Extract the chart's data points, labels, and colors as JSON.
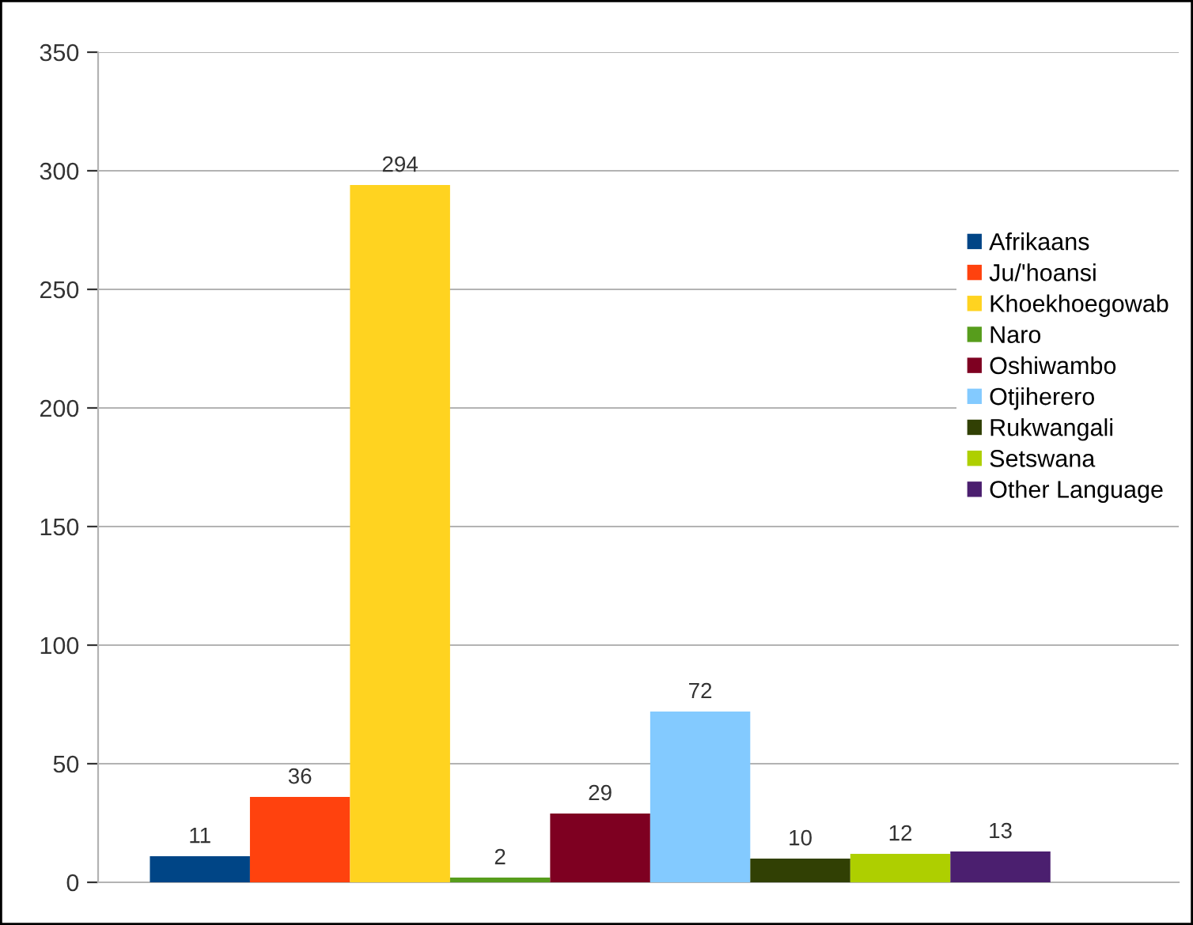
{
  "chart_data": {
    "type": "bar",
    "categories": [
      null
    ],
    "series": [
      {
        "name": "Afrikaans",
        "color": "#004586",
        "values": [
          11
        ]
      },
      {
        "name": "Ju/'hoansi",
        "color": "#ff420e",
        "values": [
          36
        ]
      },
      {
        "name": "Khoekhoegowab",
        "color": "#ffd320",
        "values": [
          294
        ]
      },
      {
        "name": "Naro",
        "color": "#579d1c",
        "values": [
          2
        ]
      },
      {
        "name": "Oshiwambo",
        "color": "#7e0021",
        "values": [
          29
        ]
      },
      {
        "name": "Otjiherero",
        "color": "#83caff",
        "values": [
          72
        ]
      },
      {
        "name": "Rukwangali",
        "color": "#314004",
        "values": [
          10
        ]
      },
      {
        "name": "Setswana",
        "color": "#aecf00",
        "values": [
          12
        ]
      },
      {
        "name": "Other Language",
        "color": "#4b1f6f",
        "values": [
          13
        ]
      }
    ],
    "ylim": [
      0,
      350
    ],
    "yticks": [
      0,
      50,
      100,
      150,
      200,
      250,
      300,
      350
    ],
    "grid": "y",
    "legend": "right",
    "data_labels": true
  }
}
